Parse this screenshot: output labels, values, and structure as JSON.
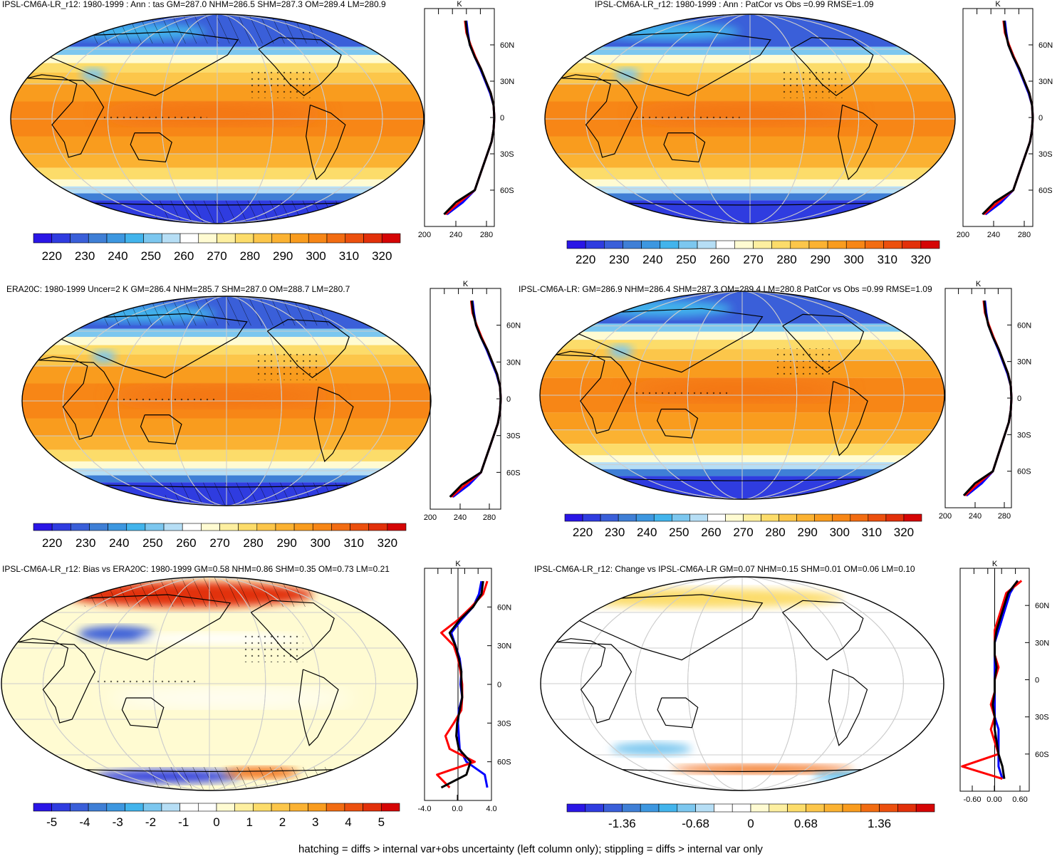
{
  "footer": "hatching = diffs > internal var+obs uncertainty (left column only); stippling = diffs > internal var only",
  "colors": {
    "abs_scale": [
      "#2a16e6",
      "#2f3ce0",
      "#3a5fd9",
      "#3f7fd6",
      "#3d97e0",
      "#42b4ec",
      "#7cc7ef",
      "#b6def5",
      "#ffffff",
      "#fffbd2",
      "#fdefa0",
      "#fcdc6a",
      "#fcc64a",
      "#fbb232",
      "#f99c1e",
      "#f78616",
      "#f26c12",
      "#ec500e",
      "#e2300a",
      "#d50505"
    ],
    "bias_scale": [
      "#2a16e6",
      "#2f3ce0",
      "#3a5fd9",
      "#3f7fd6",
      "#3d97e0",
      "#42b4ec",
      "#7cc7ef",
      "#b6def5",
      "#ffffff",
      "#ffffff",
      "#fffbd2",
      "#fdefa0",
      "#fcdc6a",
      "#fcc64a",
      "#fbb232",
      "#f99c1e",
      "#f26c12",
      "#ec500e",
      "#e2300a",
      "#d50505"
    ],
    "model_line": "#0000ff",
    "model2_line": "#ff0000",
    "obs_line": "#000000"
  },
  "chart_data": [
    {
      "type": "heatmap",
      "panel": "map",
      "title": "IPSL-CM6A-LR_r12: 1980-1999 : Ann : tas GM=287.0 NHM=286.5 SHM=287.3 OM=289.4 LM=280.9",
      "colorbar_ticks": [
        "220",
        "230",
        "240",
        "250",
        "260",
        "270",
        "280",
        "290",
        "300",
        "310",
        "320"
      ],
      "profile": {
        "unit": "K",
        "xlim": [
          200,
          300
        ],
        "xticks": [
          "200",
          "240",
          "280"
        ],
        "yticks": [
          "60N",
          "30N",
          "0",
          "30S",
          "60S"
        ],
        "lat": [
          80,
          70,
          60,
          50,
          40,
          30,
          20,
          10,
          0,
          -10,
          -20,
          -30,
          -40,
          -50,
          -60,
          -70,
          -80
        ],
        "series": [
          {
            "color": "model",
            "values": [
              260,
              262,
              265,
              272,
              280,
              287,
              294,
              299,
              300,
              299,
              296,
              290,
              284,
              278,
              272,
              255,
              232
            ]
          },
          {
            "color": "model2",
            "values": [
              258,
              260,
              266,
              273,
              281,
              288,
              295,
              299,
              300,
              299,
              296,
              290,
              284,
              278,
              272,
              250,
              230
            ]
          },
          {
            "color": "obs",
            "values": [
              259,
              261,
              265,
              272,
              281,
              288,
              295,
              299,
              300,
              299,
              296,
              290,
              284,
              278,
              272,
              245,
              228
            ]
          }
        ]
      }
    },
    {
      "type": "heatmap",
      "panel": "map",
      "title": "IPSL-CM6A-LR_r12: 1980-1999 : Ann : PatCor vs Obs =0.99 RMSE=1.09",
      "colorbar_ticks": [
        "220",
        "230",
        "240",
        "250",
        "260",
        "270",
        "280",
        "290",
        "300",
        "310",
        "320"
      ],
      "profile": {
        "unit": "K",
        "xlim": [
          200,
          300
        ],
        "xticks": [
          "200",
          "240",
          "280"
        ],
        "yticks": [
          "60N",
          "30N",
          "0",
          "30S",
          "60S"
        ],
        "lat": [
          80,
          70,
          60,
          50,
          40,
          30,
          20,
          10,
          0,
          -10,
          -20,
          -30,
          -40,
          -50,
          -60,
          -70,
          -80
        ],
        "series": [
          {
            "color": "model",
            "values": [
              260,
              262,
              265,
              272,
              280,
              287,
              294,
              299,
              300,
              299,
              296,
              290,
              284,
              278,
              272,
              255,
              232
            ]
          },
          {
            "color": "model2",
            "values": [
              258,
              260,
              266,
              273,
              281,
              288,
              295,
              299,
              300,
              299,
              296,
              290,
              284,
              278,
              272,
              250,
              230
            ]
          },
          {
            "color": "obs",
            "values": [
              259,
              261,
              265,
              272,
              281,
              288,
              295,
              299,
              300,
              299,
              296,
              290,
              284,
              278,
              272,
              245,
              228
            ]
          }
        ]
      }
    },
    {
      "type": "heatmap",
      "panel": "map",
      "title": "ERA20C: 1980-1999 Uncer=2 K GM=286.4 NHM=285.7 SHM=287.0 OM=288.7 LM=280.7",
      "colorbar_ticks": [
        "220",
        "230",
        "240",
        "250",
        "260",
        "270",
        "280",
        "290",
        "300",
        "310",
        "320"
      ],
      "profile": {
        "unit": "K",
        "xlim": [
          200,
          300
        ],
        "xticks": [
          "200",
          "240",
          "280"
        ],
        "yticks": [
          "60N",
          "30N",
          "0",
          "30S",
          "60S"
        ],
        "lat": [
          80,
          70,
          60,
          50,
          40,
          30,
          20,
          10,
          0,
          -10,
          -20,
          -30,
          -40,
          -50,
          -60,
          -70,
          -80
        ],
        "series": [
          {
            "color": "model",
            "values": [
              260,
              262,
              265,
              272,
              280,
              287,
              294,
              299,
              300,
              299,
              296,
              290,
              284,
              278,
              272,
              255,
              232
            ]
          },
          {
            "color": "model2",
            "values": [
              258,
              260,
              266,
              273,
              281,
              288,
              295,
              299,
              300,
              299,
              296,
              290,
              284,
              278,
              272,
              250,
              230
            ]
          },
          {
            "color": "obs",
            "values": [
              259,
              261,
              265,
              272,
              281,
              288,
              295,
              299,
              300,
              299,
              296,
              290,
              284,
              278,
              272,
              245,
              228
            ]
          }
        ]
      }
    },
    {
      "type": "heatmap",
      "panel": "map",
      "title": "IPSL-CM6A-LR: GM=286.9 NHM=286.4 SHM=287.3 OM=289.4 LM=280.8 PatCor vs Obs =0.99 RMSE=1.09",
      "colorbar_ticks": [
        "220",
        "230",
        "240",
        "250",
        "260",
        "270",
        "280",
        "290",
        "300",
        "310",
        "320"
      ],
      "profile": {
        "unit": "K",
        "xlim": [
          200,
          300
        ],
        "xticks": [
          "200",
          "240",
          "280"
        ],
        "yticks": [
          "60N",
          "30N",
          "0",
          "30S",
          "60S"
        ],
        "lat": [
          80,
          70,
          60,
          50,
          40,
          30,
          20,
          10,
          0,
          -10,
          -20,
          -30,
          -40,
          -50,
          -60,
          -70,
          -80
        ],
        "series": [
          {
            "color": "model",
            "values": [
              260,
              262,
              265,
              272,
              280,
              287,
              294,
              299,
              300,
              299,
              296,
              290,
              284,
              278,
              272,
              255,
              232
            ]
          },
          {
            "color": "model2",
            "values": [
              258,
              260,
              266,
              273,
              281,
              288,
              295,
              299,
              300,
              299,
              296,
              290,
              284,
              278,
              272,
              250,
              230
            ]
          },
          {
            "color": "obs",
            "values": [
              259,
              261,
              265,
              272,
              281,
              288,
              295,
              299,
              300,
              299,
              296,
              290,
              284,
              278,
              272,
              245,
              228
            ]
          }
        ]
      }
    },
    {
      "type": "heatmap",
      "panel": "map",
      "title": "IPSL-CM6A-LR_r12: Bias vs ERA20C: 1980-1999 GM=0.58 NHM=0.86 SHM=0.35 OM=0.73 LM=0.21",
      "colorbar_ticks": [
        "-5",
        "-4",
        "-3",
        "-2",
        "-1",
        "0",
        "1",
        "2",
        "3",
        "4",
        "5"
      ],
      "profile": {
        "unit": "K",
        "xlim": [
          -4,
          4
        ],
        "xticks": [
          "-4.0",
          "0.0",
          "4.0"
        ],
        "yticks": [
          "60N",
          "30N",
          "0",
          "30S",
          "60S"
        ],
        "lat": [
          80,
          70,
          60,
          50,
          40,
          30,
          20,
          10,
          0,
          -10,
          -20,
          -30,
          -40,
          -50,
          -60,
          -70,
          -80
        ],
        "series": [
          {
            "color": "model",
            "values": [
              2.8,
              2.5,
              1.8,
              0.4,
              -0.8,
              -0.3,
              0.2,
              0.4,
              0.3,
              0.5,
              0.1,
              0.0,
              0.1,
              0.2,
              1.0,
              3.2,
              3.5
            ]
          },
          {
            "color": "model2",
            "values": [
              3.5,
              3.0,
              1.6,
              0.0,
              -2.0,
              -0.5,
              0.0,
              0.3,
              0.5,
              0.5,
              0.4,
              -0.5,
              -1.5,
              -1.0,
              2.0,
              -2.5,
              -1.0
            ]
          },
          {
            "color": "obs",
            "values": [
              3.0,
              2.8,
              1.8,
              0.2,
              -1.0,
              -0.3,
              0.1,
              0.4,
              0.4,
              0.5,
              0.2,
              -0.1,
              -0.2,
              0.1,
              1.5,
              1.0,
              -2.0
            ]
          }
        ]
      }
    },
    {
      "type": "heatmap",
      "panel": "map",
      "title": "IPSL-CM6A-LR_r12: Change vs IPSL-CM6A-LR GM=0.07 NHM=0.15 SHM=0.01 OM=0.06 LM=0.10",
      "colorbar_ticks": [
        "-1.36",
        "-0.68",
        "0",
        "0.68",
        "1.36"
      ],
      "profile": {
        "unit": "K",
        "xlim": [
          -0.9,
          0.9
        ],
        "xticks": [
          "-0.60",
          "0.00",
          "0.60"
        ],
        "yticks": [
          "60N",
          "30N",
          "0",
          "30S",
          "60S"
        ],
        "lat": [
          80,
          70,
          60,
          50,
          40,
          30,
          20,
          10,
          0,
          -10,
          -20,
          -30,
          -40,
          -50,
          -60,
          -70,
          -80
        ],
        "series": [
          {
            "color": "model",
            "values": [
              0.6,
              0.4,
              0.3,
              0.2,
              0.1,
              0.0,
              0.0,
              0.0,
              0.0,
              0.0,
              0.0,
              0.0,
              0.1,
              0.1,
              0.1,
              0.1,
              0.2
            ]
          },
          {
            "color": "model2",
            "values": [
              0.7,
              0.3,
              0.2,
              0.1,
              0.0,
              0.0,
              0.0,
              0.1,
              0.0,
              0.0,
              -0.1,
              0.0,
              -0.1,
              0.0,
              0.1,
              -0.85,
              0.2
            ]
          },
          {
            "color": "obs",
            "values": [
              0.6,
              0.35,
              0.25,
              0.15,
              0.05,
              0.0,
              0.0,
              0.05,
              0.0,
              0.0,
              -0.05,
              0.0,
              0.0,
              0.05,
              0.1,
              0.2,
              0.25
            ]
          }
        ]
      }
    }
  ]
}
